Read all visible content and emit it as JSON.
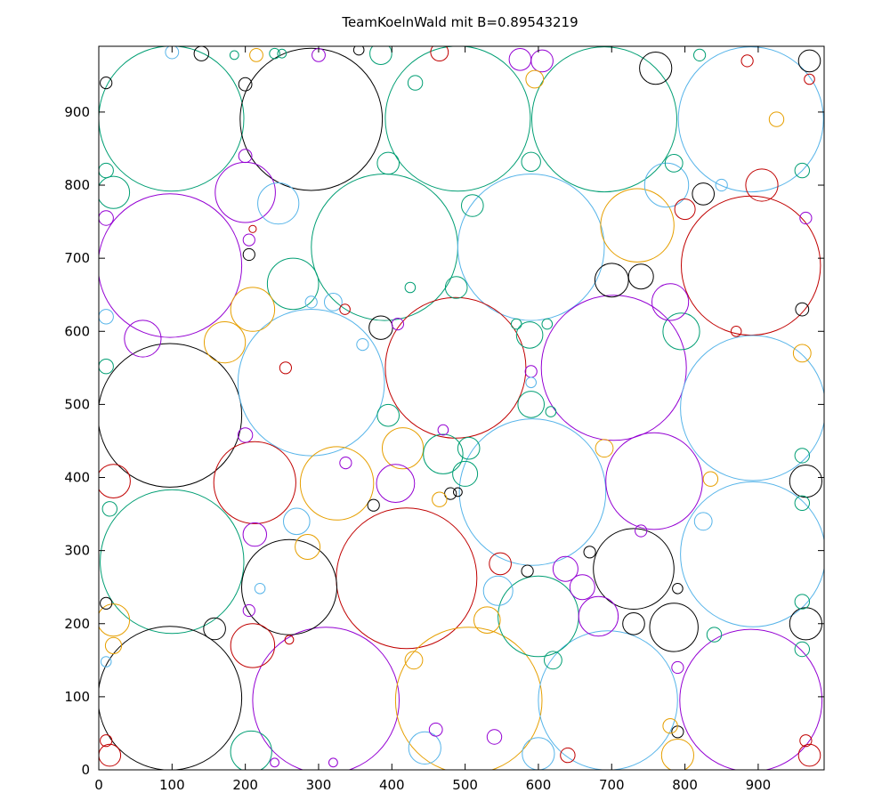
{
  "chart_data": {
    "type": "scatter",
    "title": "TeamKoelnWald mit B=0.89543219",
    "xlabel": "",
    "ylabel": "",
    "xlim": [
      0,
      990
    ],
    "ylim": [
      0,
      990
    ],
    "x_ticks": [
      0,
      100,
      200,
      300,
      400,
      500,
      600,
      700,
      800,
      900
    ],
    "y_ticks": [
      0,
      100,
      200,
      300,
      400,
      500,
      600,
      700,
      800,
      900
    ],
    "grid": false,
    "legend": "none",
    "palette": {
      "purple": "#9400d3",
      "teal": "#009e73",
      "cyan": "#56b4e9",
      "yellow": "#e69f00",
      "red": "#c00000",
      "black": "#000000"
    },
    "circles": [
      {
        "x": 99,
        "y": 891,
        "r": 99,
        "c": "teal"
      },
      {
        "x": 290,
        "y": 890,
        "r": 97,
        "c": "black"
      },
      {
        "x": 490,
        "y": 891,
        "r": 99,
        "c": "teal"
      },
      {
        "x": 690,
        "y": 890,
        "r": 99,
        "c": "teal"
      },
      {
        "x": 890,
        "y": 890,
        "r": 99,
        "c": "cyan"
      },
      {
        "x": 97,
        "y": 690,
        "r": 98,
        "c": "purple"
      },
      {
        "x": 390,
        "y": 715,
        "r": 100,
        "c": "teal"
      },
      {
        "x": 590,
        "y": 715,
        "r": 100,
        "c": "cyan"
      },
      {
        "x": 890,
        "y": 690,
        "r": 95,
        "c": "red"
      },
      {
        "x": 97,
        "y": 485,
        "r": 98,
        "c": "black"
      },
      {
        "x": 290,
        "y": 530,
        "r": 100,
        "c": "cyan"
      },
      {
        "x": 487,
        "y": 550,
        "r": 96,
        "c": "red"
      },
      {
        "x": 703,
        "y": 550,
        "r": 99,
        "c": "purple"
      },
      {
        "x": 893,
        "y": 495,
        "r": 99,
        "c": "cyan"
      },
      {
        "x": 100,
        "y": 285,
        "r": 98,
        "c": "teal"
      },
      {
        "x": 420,
        "y": 262,
        "r": 96,
        "c": "red"
      },
      {
        "x": 592,
        "y": 380,
        "r": 100,
        "c": "cyan"
      },
      {
        "x": 893,
        "y": 295,
        "r": 99,
        "c": "cyan"
      },
      {
        "x": 97,
        "y": 98,
        "r": 98,
        "c": "black"
      },
      {
        "x": 310,
        "y": 95,
        "r": 100,
        "c": "purple"
      },
      {
        "x": 505,
        "y": 95,
        "r": 100,
        "c": "yellow"
      },
      {
        "x": 695,
        "y": 95,
        "r": 95,
        "c": "cyan"
      },
      {
        "x": 890,
        "y": 95,
        "r": 97,
        "c": "purple"
      },
      {
        "x": 200,
        "y": 790,
        "r": 41,
        "c": "purple"
      },
      {
        "x": 735,
        "y": 745,
        "r": 50,
        "c": "yellow"
      },
      {
        "x": 213,
        "y": 393,
        "r": 56,
        "c": "red"
      },
      {
        "x": 325,
        "y": 392,
        "r": 50,
        "c": "yellow"
      },
      {
        "x": 260,
        "y": 250,
        "r": 65,
        "c": "black"
      },
      {
        "x": 758,
        "y": 395,
        "r": 66,
        "c": "purple"
      },
      {
        "x": 730,
        "y": 275,
        "r": 55,
        "c": "black"
      },
      {
        "x": 600,
        "y": 210,
        "r": 55,
        "c": "teal"
      },
      {
        "x": 682,
        "y": 210,
        "r": 27,
        "c": "purple"
      },
      {
        "x": 795,
        "y": 600,
        "r": 25,
        "c": "teal"
      },
      {
        "x": 785,
        "y": 195,
        "r": 33,
        "c": "black"
      },
      {
        "x": 775,
        "y": 800,
        "r": 30,
        "c": "cyan"
      },
      {
        "x": 265,
        "y": 665,
        "r": 35,
        "c": "teal"
      },
      {
        "x": 210,
        "y": 630,
        "r": 30,
        "c": "yellow"
      },
      {
        "x": 172,
        "y": 585,
        "r": 28,
        "c": "yellow"
      },
      {
        "x": 245,
        "y": 775,
        "r": 28,
        "c": "cyan"
      },
      {
        "x": 415,
        "y": 440,
        "r": 28,
        "c": "yellow"
      },
      {
        "x": 470,
        "y": 432,
        "r": 27,
        "c": "teal"
      },
      {
        "x": 405,
        "y": 392,
        "r": 26,
        "c": "purple"
      },
      {
        "x": 60,
        "y": 590,
        "r": 25,
        "c": "purple"
      },
      {
        "x": 20,
        "y": 395,
        "r": 23,
        "c": "red"
      },
      {
        "x": 20,
        "y": 205,
        "r": 22,
        "c": "yellow"
      },
      {
        "x": 210,
        "y": 170,
        "r": 30,
        "c": "red"
      },
      {
        "x": 208,
        "y": 25,
        "r": 28,
        "c": "teal"
      },
      {
        "x": 20,
        "y": 790,
        "r": 22,
        "c": "teal"
      },
      {
        "x": 780,
        "y": 640,
        "r": 25,
        "c": "purple"
      },
      {
        "x": 905,
        "y": 800,
        "r": 22,
        "c": "red"
      },
      {
        "x": 790,
        "y": 20,
        "r": 22,
        "c": "yellow"
      },
      {
        "x": 445,
        "y": 30,
        "r": 22,
        "c": "cyan"
      },
      {
        "x": 600,
        "y": 22,
        "r": 22,
        "c": "cyan"
      },
      {
        "x": 385,
        "y": 605,
        "r": 16,
        "c": "black"
      },
      {
        "x": 700,
        "y": 670,
        "r": 23,
        "c": "black"
      },
      {
        "x": 740,
        "y": 675,
        "r": 17,
        "c": "black"
      },
      {
        "x": 760,
        "y": 960,
        "r": 22,
        "c": "black"
      },
      {
        "x": 970,
        "y": 970,
        "r": 15,
        "c": "black"
      },
      {
        "x": 825,
        "y": 788,
        "r": 15,
        "c": "black"
      },
      {
        "x": 730,
        "y": 200,
        "r": 15,
        "c": "black"
      },
      {
        "x": 158,
        "y": 193,
        "r": 15,
        "c": "black"
      },
      {
        "x": 965,
        "y": 200,
        "r": 22,
        "c": "black"
      },
      {
        "x": 965,
        "y": 395,
        "r": 22,
        "c": "black"
      },
      {
        "x": 15,
        "y": 20,
        "r": 15,
        "c": "red"
      },
      {
        "x": 970,
        "y": 20,
        "r": 15,
        "c": "red"
      },
      {
        "x": 545,
        "y": 245,
        "r": 20,
        "c": "cyan"
      },
      {
        "x": 530,
        "y": 205,
        "r": 18,
        "c": "yellow"
      },
      {
        "x": 548,
        "y": 282,
        "r": 15,
        "c": "red"
      },
      {
        "x": 637,
        "y": 275,
        "r": 17,
        "c": "purple"
      },
      {
        "x": 660,
        "y": 250,
        "r": 17,
        "c": "purple"
      },
      {
        "x": 505,
        "y": 440,
        "r": 15,
        "c": "teal"
      },
      {
        "x": 500,
        "y": 405,
        "r": 17,
        "c": "teal"
      },
      {
        "x": 270,
        "y": 340,
        "r": 18,
        "c": "cyan"
      },
      {
        "x": 285,
        "y": 305,
        "r": 17,
        "c": "yellow"
      },
      {
        "x": 213,
        "y": 322,
        "r": 16,
        "c": "purple"
      },
      {
        "x": 320,
        "y": 640,
        "r": 12,
        "c": "cyan"
      },
      {
        "x": 395,
        "y": 830,
        "r": 15,
        "c": "teal"
      },
      {
        "x": 510,
        "y": 772,
        "r": 15,
        "c": "teal"
      },
      {
        "x": 488,
        "y": 660,
        "r": 15,
        "c": "teal"
      },
      {
        "x": 590,
        "y": 832,
        "r": 13,
        "c": "teal"
      },
      {
        "x": 588,
        "y": 595,
        "r": 18,
        "c": "teal"
      },
      {
        "x": 590,
        "y": 500,
        "r": 18,
        "c": "teal"
      },
      {
        "x": 395,
        "y": 485,
        "r": 15,
        "c": "teal"
      },
      {
        "x": 785,
        "y": 830,
        "r": 12,
        "c": "teal"
      },
      {
        "x": 465,
        "y": 982,
        "r": 12,
        "c": "red"
      },
      {
        "x": 575,
        "y": 972,
        "r": 15,
        "c": "purple"
      },
      {
        "x": 605,
        "y": 970,
        "r": 15,
        "c": "purple"
      },
      {
        "x": 385,
        "y": 980,
        "r": 15,
        "c": "teal"
      },
      {
        "x": 825,
        "y": 340,
        "r": 12,
        "c": "cyan"
      },
      {
        "x": 620,
        "y": 150,
        "r": 12,
        "c": "teal"
      },
      {
        "x": 140,
        "y": 980,
        "r": 10,
        "c": "black"
      },
      {
        "x": 100,
        "y": 982,
        "r": 9,
        "c": "cyan"
      },
      {
        "x": 970,
        "y": 945,
        "r": 7,
        "c": "red"
      },
      {
        "x": 595,
        "y": 945,
        "r": 12,
        "c": "yellow"
      },
      {
        "x": 430,
        "y": 150,
        "r": 12,
        "c": "yellow"
      },
      {
        "x": 200,
        "y": 840,
        "r": 9,
        "c": "purple"
      },
      {
        "x": 200,
        "y": 938,
        "r": 9,
        "c": "black"
      },
      {
        "x": 215,
        "y": 978,
        "r": 9,
        "c": "yellow"
      },
      {
        "x": 300,
        "y": 978,
        "r": 9,
        "c": "purple"
      },
      {
        "x": 240,
        "y": 980,
        "r": 7,
        "c": "teal"
      },
      {
        "x": 355,
        "y": 985,
        "r": 7,
        "c": "black"
      },
      {
        "x": 432,
        "y": 940,
        "r": 10,
        "c": "teal"
      },
      {
        "x": 925,
        "y": 890,
        "r": 10,
        "c": "yellow"
      },
      {
        "x": 10,
        "y": 940,
        "r": 8,
        "c": "black"
      },
      {
        "x": 10,
        "y": 228,
        "r": 8,
        "c": "black"
      },
      {
        "x": 15,
        "y": 357,
        "r": 10,
        "c": "teal"
      },
      {
        "x": 20,
        "y": 170,
        "r": 11,
        "c": "yellow"
      },
      {
        "x": 10,
        "y": 552,
        "r": 10,
        "c": "teal"
      },
      {
        "x": 10,
        "y": 620,
        "r": 10,
        "c": "cyan"
      },
      {
        "x": 10,
        "y": 755,
        "r": 10,
        "c": "purple"
      },
      {
        "x": 10,
        "y": 820,
        "r": 10,
        "c": "teal"
      },
      {
        "x": 10,
        "y": 148,
        "r": 7,
        "c": "cyan"
      },
      {
        "x": 10,
        "y": 40,
        "r": 8,
        "c": "red"
      },
      {
        "x": 960,
        "y": 630,
        "r": 9,
        "c": "black"
      },
      {
        "x": 960,
        "y": 570,
        "r": 12,
        "c": "yellow"
      },
      {
        "x": 960,
        "y": 430,
        "r": 10,
        "c": "teal"
      },
      {
        "x": 960,
        "y": 365,
        "r": 10,
        "c": "teal"
      },
      {
        "x": 960,
        "y": 230,
        "r": 10,
        "c": "teal"
      },
      {
        "x": 960,
        "y": 165,
        "r": 10,
        "c": "teal"
      },
      {
        "x": 960,
        "y": 820,
        "r": 10,
        "c": "teal"
      },
      {
        "x": 965,
        "y": 755,
        "r": 8,
        "c": "purple"
      },
      {
        "x": 965,
        "y": 40,
        "r": 8,
        "c": "red"
      },
      {
        "x": 870,
        "y": 600,
        "r": 7,
        "c": "red"
      },
      {
        "x": 790,
        "y": 52,
        "r": 8,
        "c": "black"
      },
      {
        "x": 790,
        "y": 140,
        "r": 8,
        "c": "purple"
      },
      {
        "x": 790,
        "y": 248,
        "r": 7,
        "c": "black"
      },
      {
        "x": 800,
        "y": 767,
        "r": 14,
        "c": "red"
      },
      {
        "x": 210,
        "y": 740,
        "r": 5,
        "c": "red"
      },
      {
        "x": 205,
        "y": 725,
        "r": 8,
        "c": "purple"
      },
      {
        "x": 205,
        "y": 705,
        "r": 8,
        "c": "black"
      },
      {
        "x": 337,
        "y": 420,
        "r": 8,
        "c": "purple"
      },
      {
        "x": 375,
        "y": 362,
        "r": 8,
        "c": "black"
      },
      {
        "x": 480,
        "y": 378,
        "r": 8,
        "c": "black"
      },
      {
        "x": 585,
        "y": 272,
        "r": 8,
        "c": "black"
      },
      {
        "x": 670,
        "y": 298,
        "r": 8,
        "c": "black"
      },
      {
        "x": 740,
        "y": 327,
        "r": 8,
        "c": "purple"
      },
      {
        "x": 690,
        "y": 440,
        "r": 12,
        "c": "yellow"
      },
      {
        "x": 835,
        "y": 398,
        "r": 10,
        "c": "yellow"
      },
      {
        "x": 200,
        "y": 458,
        "r": 10,
        "c": "purple"
      },
      {
        "x": 255,
        "y": 550,
        "r": 8,
        "c": "red"
      },
      {
        "x": 290,
        "y": 640,
        "r": 8,
        "c": "cyan"
      },
      {
        "x": 336,
        "y": 630,
        "r": 7,
        "c": "red"
      },
      {
        "x": 425,
        "y": 660,
        "r": 7,
        "c": "teal"
      },
      {
        "x": 570,
        "y": 610,
        "r": 7,
        "c": "teal"
      },
      {
        "x": 612,
        "y": 610,
        "r": 7,
        "c": "teal"
      },
      {
        "x": 590,
        "y": 545,
        "r": 8,
        "c": "purple"
      },
      {
        "x": 590,
        "y": 530,
        "r": 7,
        "c": "cyan"
      },
      {
        "x": 617,
        "y": 490,
        "r": 7,
        "c": "teal"
      },
      {
        "x": 540,
        "y": 45,
        "r": 10,
        "c": "purple"
      },
      {
        "x": 460,
        "y": 55,
        "r": 9,
        "c": "purple"
      },
      {
        "x": 640,
        "y": 20,
        "r": 10,
        "c": "red"
      },
      {
        "x": 780,
        "y": 60,
        "r": 10,
        "c": "yellow"
      },
      {
        "x": 850,
        "y": 800,
        "r": 8,
        "c": "cyan"
      },
      {
        "x": 885,
        "y": 970,
        "r": 8,
        "c": "red"
      },
      {
        "x": 840,
        "y": 185,
        "r": 10,
        "c": "teal"
      },
      {
        "x": 260,
        "y": 178,
        "r": 6,
        "c": "red"
      },
      {
        "x": 185,
        "y": 978,
        "r": 6,
        "c": "teal"
      },
      {
        "x": 820,
        "y": 978,
        "r": 8,
        "c": "teal"
      },
      {
        "x": 250,
        "y": 980,
        "r": 6,
        "c": "teal"
      },
      {
        "x": 320,
        "y": 10,
        "r": 6,
        "c": "purple"
      },
      {
        "x": 240,
        "y": 10,
        "r": 6,
        "c": "purple"
      },
      {
        "x": 408,
        "y": 610,
        "r": 8,
        "c": "purple"
      },
      {
        "x": 465,
        "y": 370,
        "r": 10,
        "c": "yellow"
      },
      {
        "x": 490,
        "y": 380,
        "r": 6,
        "c": "black"
      },
      {
        "x": 470,
        "y": 465,
        "r": 7,
        "c": "purple"
      },
      {
        "x": 360,
        "y": 582,
        "r": 8,
        "c": "cyan"
      },
      {
        "x": 205,
        "y": 218,
        "r": 8,
        "c": "purple"
      },
      {
        "x": 220,
        "y": 248,
        "r": 7,
        "c": "cyan"
      }
    ]
  }
}
